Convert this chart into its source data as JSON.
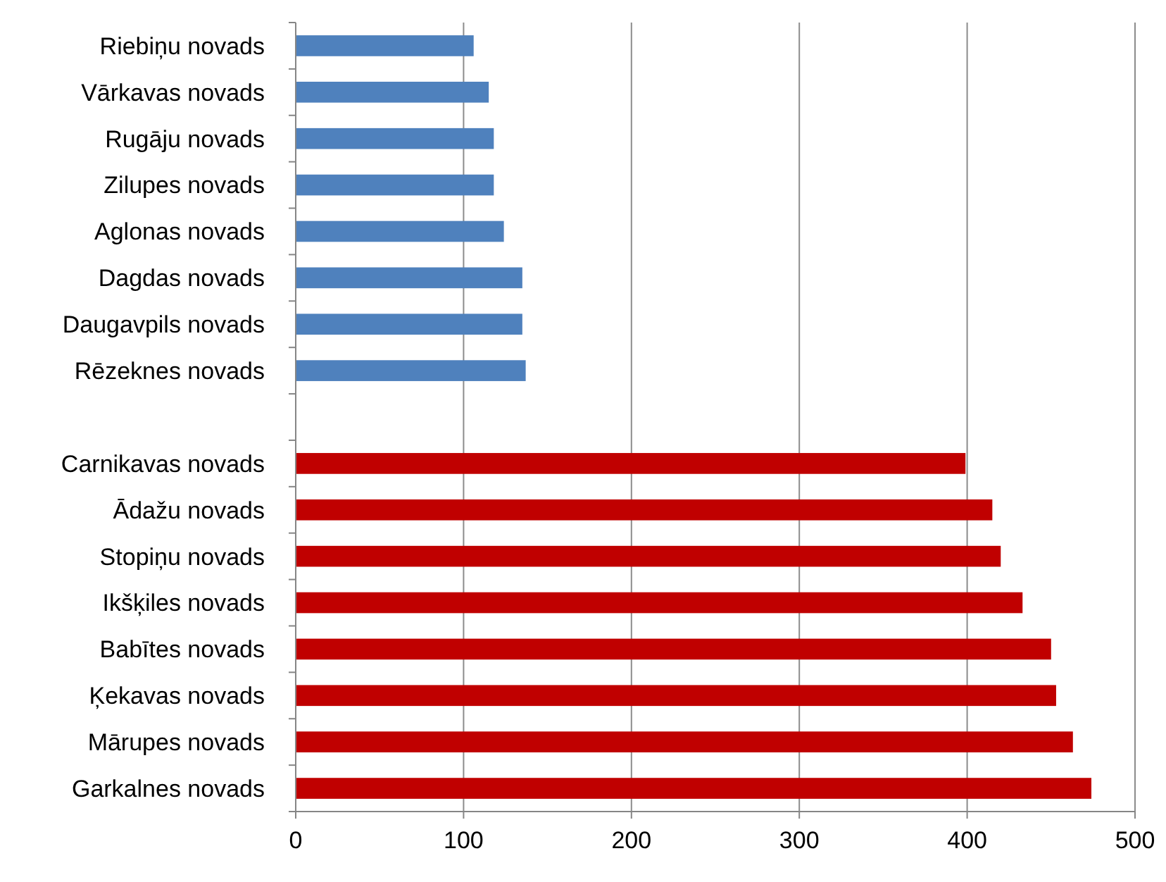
{
  "chart_data": {
    "type": "bar",
    "orientation": "horizontal",
    "categories": [
      "Riebiņu novads",
      "Vārkavas novads",
      "Rugāju novads",
      "Zilupes novads",
      "Aglonas novads",
      "Dagdas novads",
      "Daugavpils novads",
      "Rēzeknes novads",
      null,
      "Carnikavas novads",
      "Ādažu novads",
      "Stopiņu novads",
      "Ikšķiles novads",
      "Babītes novads",
      "Ķekavas novads",
      "Mārupes novads",
      "Garkalnes novads"
    ],
    "values": [
      106,
      115,
      118,
      118,
      124,
      135,
      135,
      137,
      null,
      399,
      415,
      420,
      433,
      450,
      453,
      463,
      474
    ],
    "colors": [
      "#4f81bd",
      "#4f81bd",
      "#4f81bd",
      "#4f81bd",
      "#4f81bd",
      "#4f81bd",
      "#4f81bd",
      "#4f81bd",
      null,
      "#c00000",
      "#c00000",
      "#c00000",
      "#c00000",
      "#c00000",
      "#c00000",
      "#c00000",
      "#c00000"
    ],
    "xlim": [
      0,
      500
    ],
    "xticks": [
      0,
      100,
      200,
      300,
      400,
      500
    ],
    "grid": "x"
  }
}
